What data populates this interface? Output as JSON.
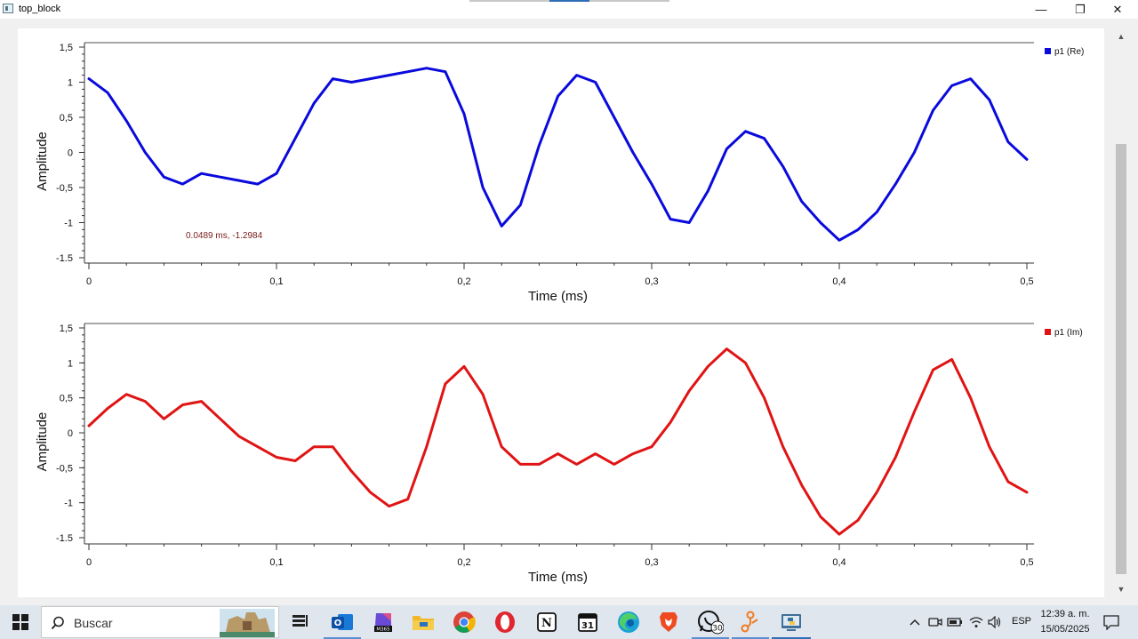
{
  "window": {
    "title": "top_block",
    "minimize_glyph": "—",
    "maximize_glyph": "❐",
    "close_glyph": "✕"
  },
  "chart_data": [
    {
      "type": "line",
      "title": "",
      "xlabel": "Time (ms)",
      "ylabel": "Amplitude",
      "xlim": [
        0,
        0.5
      ],
      "ylim": [
        -1.5,
        1.5
      ],
      "x_tick_labels": [
        "0",
        "0,1",
        "0,2",
        "0,3",
        "0,4",
        "0,5"
      ],
      "y_tick_labels": [
        "1,5",
        "1",
        "0,5",
        "0",
        "-0,5",
        "-1",
        "-1.5"
      ],
      "grid": false,
      "legend_position": "top-right",
      "series": [
        {
          "name": "p1 (Re)",
          "color": "#0a0adc",
          "x": [
            0,
            0.01,
            0.02,
            0.03,
            0.04,
            0.05,
            0.06,
            0.07,
            0.08,
            0.09,
            0.1,
            0.11,
            0.12,
            0.13,
            0.14,
            0.15,
            0.16,
            0.17,
            0.18,
            0.19,
            0.2,
            0.21,
            0.22,
            0.23,
            0.24,
            0.25,
            0.26,
            0.27,
            0.28,
            0.29,
            0.3,
            0.31,
            0.32,
            0.33,
            0.34,
            0.35,
            0.36,
            0.37,
            0.38,
            0.39,
            0.4,
            0.41,
            0.42,
            0.43,
            0.44,
            0.45,
            0.46,
            0.47,
            0.48,
            0.49,
            0.5
          ],
          "y": [
            1.05,
            0.85,
            0.45,
            0.0,
            -0.35,
            -0.45,
            -0.3,
            -0.35,
            -0.4,
            -0.45,
            -0.3,
            0.2,
            0.7,
            1.05,
            1.0,
            1.05,
            1.1,
            1.15,
            1.2,
            1.15,
            0.55,
            -0.5,
            -1.05,
            -0.75,
            0.1,
            0.8,
            1.1,
            1.0,
            0.5,
            0.0,
            -0.45,
            -0.95,
            -1.0,
            -0.55,
            0.05,
            0.3,
            0.2,
            -0.2,
            -0.7,
            -1.0,
            -1.25,
            -1.1,
            -0.85,
            -0.45,
            0.0,
            0.6,
            0.95,
            1.05,
            0.75,
            0.15,
            -0.1
          ]
        }
      ],
      "annotation": "0.0489 ms, -1.2984"
    },
    {
      "type": "line",
      "title": "",
      "xlabel": "Time (ms)",
      "ylabel": "Amplitude",
      "xlim": [
        0,
        0.5
      ],
      "ylim": [
        -1.5,
        1.5
      ],
      "x_tick_labels": [
        "0",
        "0,1",
        "0,2",
        "0,3",
        "0,4",
        "0,5"
      ],
      "y_tick_labels": [
        "1,5",
        "1",
        "0,5",
        "0",
        "-0,5",
        "-1",
        "-1.5"
      ],
      "grid": false,
      "legend_position": "top-right",
      "series": [
        {
          "name": "p1 (Im)",
          "color": "#e01414",
          "x": [
            0,
            0.01,
            0.02,
            0.03,
            0.04,
            0.05,
            0.06,
            0.07,
            0.08,
            0.09,
            0.1,
            0.11,
            0.12,
            0.13,
            0.14,
            0.15,
            0.16,
            0.17,
            0.18,
            0.19,
            0.2,
            0.21,
            0.22,
            0.23,
            0.24,
            0.25,
            0.26,
            0.27,
            0.28,
            0.29,
            0.3,
            0.31,
            0.32,
            0.33,
            0.34,
            0.35,
            0.36,
            0.37,
            0.38,
            0.39,
            0.4,
            0.41,
            0.42,
            0.43,
            0.44,
            0.45,
            0.46,
            0.47,
            0.48,
            0.49,
            0.5
          ],
          "y": [
            0.1,
            0.35,
            0.55,
            0.45,
            0.2,
            0.4,
            0.45,
            0.2,
            -0.05,
            -0.2,
            -0.35,
            -0.4,
            -0.2,
            -0.2,
            -0.55,
            -0.85,
            -1.05,
            -0.95,
            -0.2,
            0.7,
            0.95,
            0.55,
            -0.2,
            -0.45,
            -0.45,
            -0.3,
            -0.45,
            -0.3,
            -0.45,
            -0.3,
            -0.2,
            0.15,
            0.6,
            0.95,
            1.2,
            1.0,
            0.5,
            -0.2,
            -0.75,
            -1.2,
            -1.45,
            -1.25,
            -0.85,
            -0.35,
            0.3,
            0.9,
            1.05,
            0.5,
            -0.2,
            -0.7,
            -0.85
          ]
        }
      ]
    }
  ],
  "taskbar": {
    "search_placeholder": "Buscar",
    "language": "ESP",
    "time": "12:39 a. m.",
    "date": "15/05/2025",
    "whatsapp_badge": "30",
    "m365_label": "M365",
    "calendar_day": "31",
    "notion_glyph": "N",
    "icons": [
      "windows-start-icon",
      "search-icon",
      "task-view-icon",
      "outlook-icon",
      "m365-icon",
      "file-explorer-icon",
      "chrome-icon",
      "opera-icon",
      "notion-icon",
      "calendar-icon",
      "edge-icon",
      "brave-icon",
      "whatsapp-icon",
      "git-icon",
      "python-app-icon"
    ]
  }
}
